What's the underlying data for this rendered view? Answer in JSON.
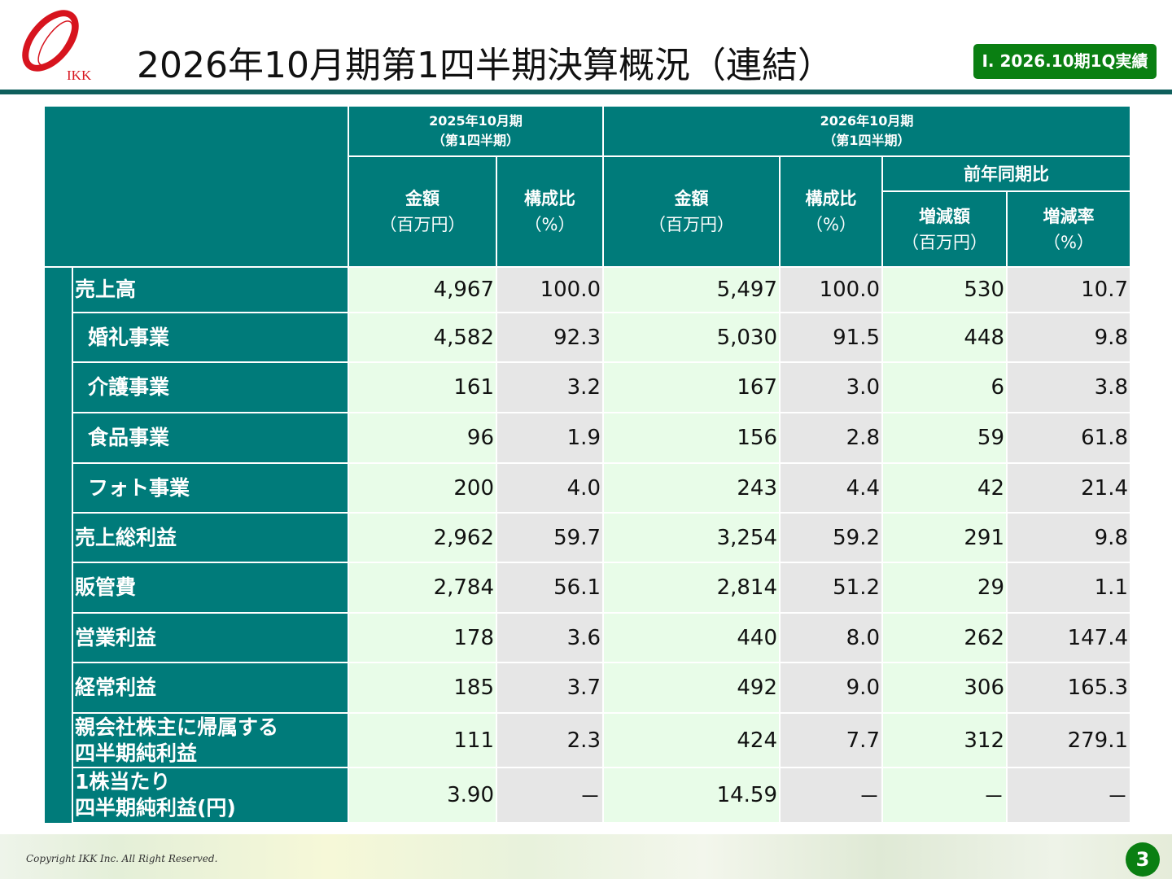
{
  "header": {
    "title": "2026年10月期第1四半期決算概況（連結）",
    "badge": "Ⅰ. 2026.10期1Q実績",
    "logo_text": "IKK"
  },
  "table": {
    "period_prev": [
      "2025年10月期",
      "（第1四半期）"
    ],
    "period_curr": [
      "2026年10月期",
      "（第1四半期）"
    ],
    "yoy": "前年同期比",
    "col_amount": [
      "金額",
      "（百万円）"
    ],
    "col_ratio": [
      "構成比",
      "（%）"
    ],
    "col_diff": [
      "増減額",
      "（百万円）"
    ],
    "col_rate": [
      "増減率",
      "（%）"
    ],
    "rows": [
      {
        "label": "売上高",
        "seg": false,
        "v": [
          "4,967",
          "100.0",
          "5,497",
          "100.0",
          "530",
          "10.7"
        ]
      },
      {
        "label": "婚礼事業",
        "seg": true,
        "v": [
          "4,582",
          "92.3",
          "5,030",
          "91.5",
          "448",
          "9.8"
        ]
      },
      {
        "label": "介護事業",
        "seg": true,
        "v": [
          "161",
          "3.2",
          "167",
          "3.0",
          "6",
          "3.8"
        ]
      },
      {
        "label": "食品事業",
        "seg": true,
        "v": [
          "96",
          "1.9",
          "156",
          "2.8",
          "59",
          "61.8"
        ]
      },
      {
        "label": "フォト事業",
        "seg": true,
        "v": [
          "200",
          "4.0",
          "243",
          "4.4",
          "42",
          "21.4"
        ]
      },
      {
        "label": "売上総利益",
        "seg": false,
        "v": [
          "2,962",
          "59.7",
          "3,254",
          "59.2",
          "291",
          "9.8"
        ]
      },
      {
        "label": "販管費",
        "seg": false,
        "v": [
          "2,784",
          "56.1",
          "2,814",
          "51.2",
          "29",
          "1.1"
        ]
      },
      {
        "label": "営業利益",
        "seg": false,
        "v": [
          "178",
          "3.6",
          "440",
          "8.0",
          "262",
          "147.4"
        ]
      },
      {
        "label": "経常利益",
        "seg": false,
        "v": [
          "185",
          "3.7",
          "492",
          "9.0",
          "306",
          "165.3"
        ]
      },
      {
        "label": "親会社株主に帰属する\n四半期純利益",
        "seg": false,
        "v": [
          "111",
          "2.3",
          "424",
          "7.7",
          "312",
          "279.1"
        ]
      },
      {
        "label": "1株当たり\n四半期純利益(円)",
        "seg": false,
        "v": [
          "3.90",
          "－",
          "14.59",
          "－",
          "－",
          "－"
        ]
      }
    ]
  },
  "footer": {
    "copyright": "Copyright IKK Inc. All Right Reserved.",
    "page": "3"
  },
  "colors": {
    "header_teal": "#007b7a",
    "badge_green": "#0a7f12",
    "logo_red": "#d7141e",
    "amount_bg": "#e8fce8",
    "ratio_bg": "#e6e6e6"
  }
}
